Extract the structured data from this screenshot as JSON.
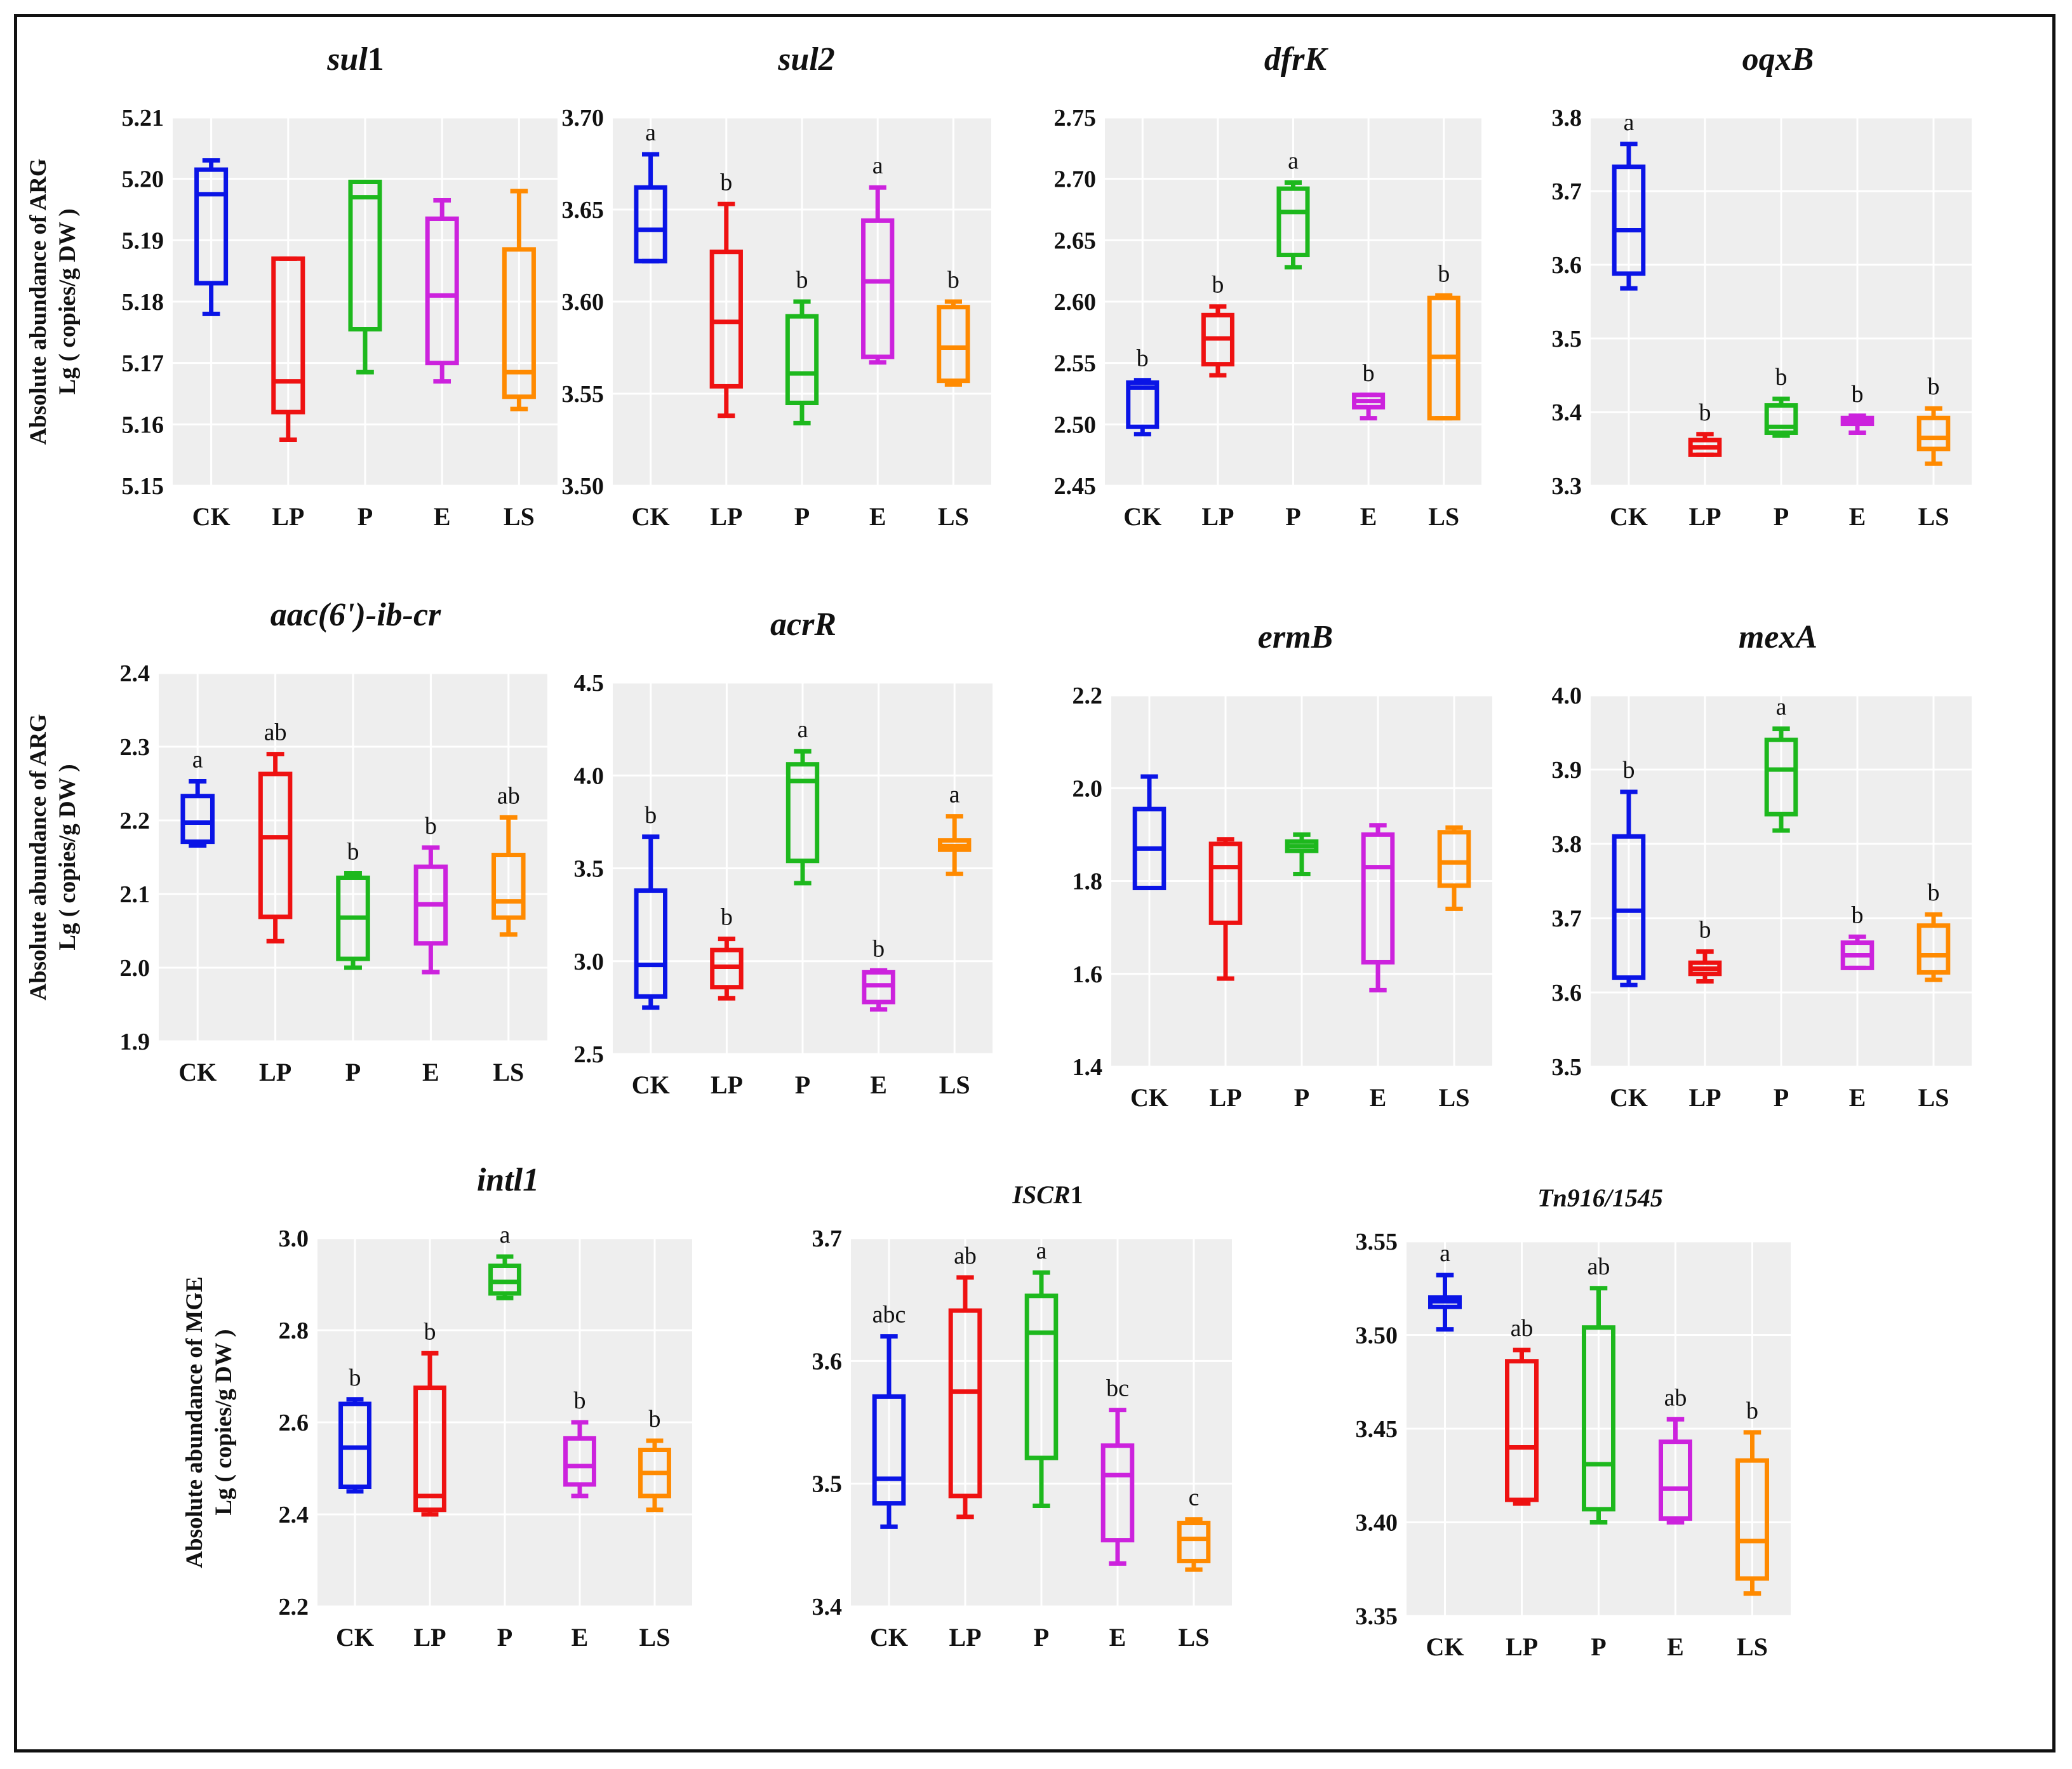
{
  "figure": {
    "categories": [
      "CK",
      "LP",
      "P",
      "E",
      "LS"
    ],
    "colors": [
      "#0a14e6",
      "#ee1111",
      "#1db81d",
      "#cc22dd",
      "#ff8a00"
    ],
    "row_labels": {
      "arg": [
        "Absolute abundance of  ARG",
        "Lg ( copies/g DW )"
      ],
      "mge": [
        "Absolute abundance of  MGE",
        "Lg ( copies/g DW )"
      ]
    }
  },
  "chart_data": [
    {
      "type": "box",
      "title": "sul",
      "title_suffix": "1",
      "ylim": [
        5.15,
        5.21
      ],
      "yticks": [
        "5.15",
        "5.16",
        "5.17",
        "5.18",
        "5.19",
        "5.20",
        "5.21"
      ],
      "categories": [
        "CK",
        "LP",
        "P",
        "E",
        "LS"
      ],
      "boxes": [
        {
          "min": 5.178,
          "q1": 5.183,
          "median": 5.1975,
          "q3": 5.2015,
          "max": 5.203,
          "label": ""
        },
        {
          "min": 5.1575,
          "q1": 5.162,
          "median": 5.167,
          "q3": 5.187,
          "max": 5.187,
          "label": ""
        },
        {
          "min": 5.1685,
          "q1": 5.1755,
          "median": 5.197,
          "q3": 5.1995,
          "max": 5.1995,
          "label": ""
        },
        {
          "min": 5.167,
          "q1": 5.17,
          "median": 5.181,
          "q3": 5.1935,
          "max": 5.1965,
          "label": ""
        },
        {
          "min": 5.1625,
          "q1": 5.1645,
          "median": 5.1685,
          "q3": 5.1885,
          "max": 5.198,
          "label": ""
        }
      ]
    },
    {
      "type": "box",
      "title": "sul2",
      "title_suffix": "",
      "ylim": [
        3.5,
        3.7
      ],
      "yticks": [
        "3.50",
        "3.55",
        "3.60",
        "3.65",
        "3.70"
      ],
      "categories": [
        "CK",
        "LP",
        "P",
        "E",
        "LS"
      ],
      "boxes": [
        {
          "min": 3.622,
          "q1": 3.622,
          "median": 3.639,
          "q3": 3.662,
          "max": 3.68,
          "label": "a"
        },
        {
          "min": 3.538,
          "q1": 3.554,
          "median": 3.589,
          "q3": 3.627,
          "max": 3.653,
          "label": "b"
        },
        {
          "min": 3.534,
          "q1": 3.545,
          "median": 3.561,
          "q3": 3.592,
          "max": 3.6,
          "label": "b"
        },
        {
          "min": 3.567,
          "q1": 3.57,
          "median": 3.611,
          "q3": 3.644,
          "max": 3.662,
          "label": "a"
        },
        {
          "min": 3.555,
          "q1": 3.557,
          "median": 3.575,
          "q3": 3.597,
          "max": 3.6,
          "label": "b"
        }
      ]
    },
    {
      "type": "box",
      "title": "dfrK",
      "title_suffix": "",
      "ylim": [
        2.45,
        2.75
      ],
      "yticks": [
        "2.45",
        "2.50",
        "2.55",
        "2.60",
        "2.65",
        "2.70",
        "2.75"
      ],
      "categories": [
        "CK",
        "LP",
        "P",
        "E",
        "LS"
      ],
      "boxes": [
        {
          "min": 2.492,
          "q1": 2.498,
          "median": 2.53,
          "q3": 2.534,
          "max": 2.536,
          "label": "b"
        },
        {
          "min": 2.54,
          "q1": 2.549,
          "median": 2.57,
          "q3": 2.589,
          "max": 2.596,
          "label": "b"
        },
        {
          "min": 2.628,
          "q1": 2.638,
          "median": 2.673,
          "q3": 2.692,
          "max": 2.697,
          "label": "a"
        },
        {
          "min": 2.505,
          "q1": 2.514,
          "median": 2.519,
          "q3": 2.524,
          "max": 2.524,
          "label": "b"
        },
        {
          "min": 2.505,
          "q1": 2.505,
          "median": 2.555,
          "q3": 2.603,
          "max": 2.605,
          "label": "b"
        }
      ]
    },
    {
      "type": "box",
      "title": "oqxB",
      "title_suffix": "",
      "ylim": [
        3.3,
        3.8
      ],
      "yticks": [
        "3.3",
        "3.4",
        "3.5",
        "3.6",
        "3.7",
        "3.8"
      ],
      "categories": [
        "CK",
        "LP",
        "P",
        "E",
        "LS"
      ],
      "boxes": [
        {
          "min": 3.568,
          "q1": 3.588,
          "median": 3.647,
          "q3": 3.733,
          "max": 3.764,
          "label": "a"
        },
        {
          "min": 3.342,
          "q1": 3.342,
          "median": 3.352,
          "q3": 3.362,
          "max": 3.37,
          "label": "b"
        },
        {
          "min": 3.368,
          "q1": 3.372,
          "median": 3.38,
          "q3": 3.409,
          "max": 3.418,
          "label": "b"
        },
        {
          "min": 3.372,
          "q1": 3.384,
          "median": 3.388,
          "q3": 3.392,
          "max": 3.395,
          "label": "b"
        },
        {
          "min": 3.33,
          "q1": 3.35,
          "median": 3.365,
          "q3": 3.392,
          "max": 3.405,
          "label": "b"
        }
      ]
    },
    {
      "type": "box",
      "title": "aac(6')-ib-cr",
      "title_suffix": "",
      "ylim": [
        1.9,
        2.4
      ],
      "yticks": [
        "1.9",
        "2.0",
        "2.1",
        "2.2",
        "2.3",
        "2.4"
      ],
      "categories": [
        "CK",
        "LP",
        "P",
        "E",
        "LS"
      ],
      "boxes": [
        {
          "min": 2.166,
          "q1": 2.171,
          "median": 2.197,
          "q3": 2.233,
          "max": 2.253,
          "label": "a"
        },
        {
          "min": 2.036,
          "q1": 2.069,
          "median": 2.177,
          "q3": 2.263,
          "max": 2.29,
          "label": "ab"
        },
        {
          "min": 2.0,
          "q1": 2.012,
          "median": 2.068,
          "q3": 2.122,
          "max": 2.128,
          "label": "b"
        },
        {
          "min": 1.994,
          "q1": 2.033,
          "median": 2.086,
          "q3": 2.137,
          "max": 2.163,
          "label": "b"
        },
        {
          "min": 2.045,
          "q1": 2.068,
          "median": 2.09,
          "q3": 2.153,
          "max": 2.204,
          "label": "ab"
        }
      ]
    },
    {
      "type": "box",
      "title": "acrR",
      "title_suffix": "",
      "ylim": [
        2.5,
        4.5
      ],
      "yticks": [
        "2.5",
        "3.0",
        "3.5",
        "4.0",
        "4.5"
      ],
      "categories": [
        "CK",
        "LP",
        "P",
        "E",
        "LS"
      ],
      "boxes": [
        {
          "min": 2.75,
          "q1": 2.81,
          "median": 2.98,
          "q3": 3.38,
          "max": 3.67,
          "label": "b"
        },
        {
          "min": 2.8,
          "q1": 2.86,
          "median": 2.97,
          "q3": 3.06,
          "max": 3.12,
          "label": "b"
        },
        {
          "min": 3.42,
          "q1": 3.54,
          "median": 3.97,
          "q3": 4.06,
          "max": 4.13,
          "label": "a"
        },
        {
          "min": 2.74,
          "q1": 2.78,
          "median": 2.87,
          "q3": 2.94,
          "max": 2.95,
          "label": "b"
        },
        {
          "min": 3.47,
          "q1": 3.6,
          "median": 3.62,
          "q3": 3.65,
          "max": 3.78,
          "label": "a"
        }
      ]
    },
    {
      "type": "box",
      "title": "ermB",
      "title_suffix": "",
      "ylim": [
        1.4,
        2.2
      ],
      "yticks": [
        "1.4",
        "1.6",
        "1.8",
        "2.0",
        "2.2"
      ],
      "categories": [
        "CK",
        "LP",
        "P",
        "E",
        "LS"
      ],
      "boxes": [
        {
          "min": 1.785,
          "q1": 1.785,
          "median": 1.87,
          "q3": 1.955,
          "max": 2.025,
          "label": ""
        },
        {
          "min": 1.59,
          "q1": 1.71,
          "median": 1.83,
          "q3": 1.88,
          "max": 1.89,
          "label": ""
        },
        {
          "min": 1.815,
          "q1": 1.865,
          "median": 1.875,
          "q3": 1.885,
          "max": 1.9,
          "label": ""
        },
        {
          "min": 1.565,
          "q1": 1.625,
          "median": 1.83,
          "q3": 1.9,
          "max": 1.92,
          "label": ""
        },
        {
          "min": 1.74,
          "q1": 1.79,
          "median": 1.84,
          "q3": 1.905,
          "max": 1.915,
          "label": ""
        }
      ]
    },
    {
      "type": "box",
      "title": "mexA",
      "title_suffix": "",
      "ylim": [
        3.5,
        4.0
      ],
      "yticks": [
        "3.5",
        "3.6",
        "3.7",
        "3.8",
        "3.9",
        "4.0"
      ],
      "categories": [
        "CK",
        "LP",
        "P",
        "E",
        "LS"
      ],
      "boxes": [
        {
          "min": 3.61,
          "q1": 3.62,
          "median": 3.71,
          "q3": 3.81,
          "max": 3.87,
          "label": "b"
        },
        {
          "min": 3.615,
          "q1": 3.625,
          "median": 3.632,
          "q3": 3.64,
          "max": 3.655,
          "label": "b"
        },
        {
          "min": 3.818,
          "q1": 3.84,
          "median": 3.9,
          "q3": 3.94,
          "max": 3.955,
          "label": "a"
        },
        {
          "min": 3.633,
          "q1": 3.633,
          "median": 3.65,
          "q3": 3.667,
          "max": 3.675,
          "label": "b"
        },
        {
          "min": 3.617,
          "q1": 3.627,
          "median": 3.65,
          "q3": 3.69,
          "max": 3.705,
          "label": "b"
        }
      ]
    },
    {
      "type": "box",
      "title": "intl1",
      "title_suffix": "",
      "ylim": [
        2.2,
        3.0
      ],
      "yticks": [
        "2.2",
        "2.4",
        "2.6",
        "2.8",
        "3.0"
      ],
      "categories": [
        "CK",
        "LP",
        "P",
        "E",
        "LS"
      ],
      "boxes": [
        {
          "min": 2.45,
          "q1": 2.46,
          "median": 2.545,
          "q3": 2.64,
          "max": 2.65,
          "label": "b"
        },
        {
          "min": 2.4,
          "q1": 2.41,
          "median": 2.44,
          "q3": 2.675,
          "max": 2.75,
          "label": "b"
        },
        {
          "min": 2.87,
          "q1": 2.88,
          "median": 2.905,
          "q3": 2.94,
          "max": 2.96,
          "label": "a"
        },
        {
          "min": 2.44,
          "q1": 2.465,
          "median": 2.505,
          "q3": 2.565,
          "max": 2.6,
          "label": "b"
        },
        {
          "min": 2.41,
          "q1": 2.44,
          "median": 2.49,
          "q3": 2.54,
          "max": 2.56,
          "label": "b"
        }
      ]
    },
    {
      "type": "box",
      "title": "ISCR",
      "title_suffix": "1",
      "ylim": [
        3.4,
        3.7
      ],
      "yticks": [
        "3.4",
        "3.5",
        "3.6",
        "3.7"
      ],
      "categories": [
        "CK",
        "LP",
        "P",
        "E",
        "LS"
      ],
      "boxes": [
        {
          "min": 3.465,
          "q1": 3.484,
          "median": 3.504,
          "q3": 3.571,
          "max": 3.62,
          "label": "abc"
        },
        {
          "min": 3.473,
          "q1": 3.49,
          "median": 3.575,
          "q3": 3.641,
          "max": 3.668,
          "label": "ab"
        },
        {
          "min": 3.482,
          "q1": 3.521,
          "median": 3.623,
          "q3": 3.653,
          "max": 3.672,
          "label": "a"
        },
        {
          "min": 3.435,
          "q1": 3.454,
          "median": 3.507,
          "q3": 3.531,
          "max": 3.56,
          "label": "bc"
        },
        {
          "min": 3.43,
          "q1": 3.437,
          "median": 3.455,
          "q3": 3.468,
          "max": 3.471,
          "label": "c"
        }
      ]
    },
    {
      "type": "box",
      "title": "Tn916/1545",
      "title_suffix": "",
      "ylim": [
        3.35,
        3.55
      ],
      "yticks": [
        "3.35",
        "3.40",
        "3.45",
        "3.50",
        "3.55"
      ],
      "categories": [
        "CK",
        "LP",
        "P",
        "E",
        "LS"
      ],
      "boxes": [
        {
          "min": 3.503,
          "q1": 3.515,
          "median": 3.518,
          "q3": 3.52,
          "max": 3.532,
          "label": "a"
        },
        {
          "min": 3.41,
          "q1": 3.412,
          "median": 3.44,
          "q3": 3.486,
          "max": 3.492,
          "label": "ab"
        },
        {
          "min": 3.4,
          "q1": 3.407,
          "median": 3.431,
          "q3": 3.504,
          "max": 3.525,
          "label": "ab"
        },
        {
          "min": 3.4,
          "q1": 3.402,
          "median": 3.418,
          "q3": 3.443,
          "max": 3.455,
          "label": "ab"
        },
        {
          "min": 3.362,
          "q1": 3.37,
          "median": 3.39,
          "q3": 3.433,
          "max": 3.448,
          "label": "b"
        }
      ]
    }
  ]
}
